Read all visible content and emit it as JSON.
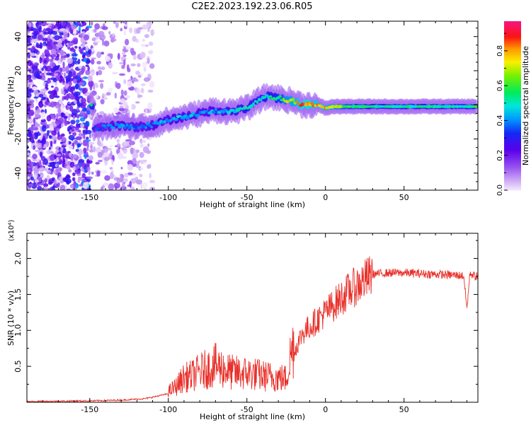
{
  "figure_title": "C2E2.2023.192.23.06.R05",
  "chart_data": [
    {
      "type": "heatmap",
      "xlabel": "Height of straight line (km)",
      "ylabel": "Frequency (Hz)",
      "xlim": [
        -190,
        97
      ],
      "ylim": [
        -50,
        49
      ],
      "x_ticks": [
        -150,
        -100,
        -50,
        0,
        50
      ],
      "x_tick_labels": [
        "-150",
        "-100",
        "-50",
        "0",
        "50"
      ],
      "y_ticks": [
        -40,
        -20,
        0,
        20,
        40
      ],
      "y_tick_labels": [
        "-40",
        "-20",
        "0",
        "20",
        "40"
      ],
      "colorbar": {
        "label": "Normalized spectral amplitude",
        "range": [
          0,
          0.97
        ],
        "ticks": [
          0.0,
          0.2,
          0.4,
          0.6,
          0.8
        ],
        "tick_labels": [
          "0.0",
          "0.2",
          "0.4",
          "0.6",
          "0.8"
        ],
        "colormap": "rainbow (white–purple–blue–cyan–green–yellow–red–pink)"
      },
      "ridge_frequency": {
        "x": [
          -148,
          -140,
          -130,
          -120,
          -110,
          -100,
          -90,
          -80,
          -70,
          -60,
          -50,
          -45,
          -40,
          -35,
          -30,
          -25,
          -20,
          -15,
          -10,
          -5,
          0,
          5,
          10,
          20,
          30,
          50,
          70,
          90,
          95
        ],
        "y": [
          -14,
          -13,
          -12,
          -13,
          -12,
          -9,
          -7,
          -5,
          -3,
          -4,
          -2,
          1,
          4,
          5,
          4,
          3,
          2,
          0,
          0,
          0,
          -2,
          -1,
          -1,
          -1,
          -1,
          -1,
          -1,
          -1,
          -1
        ],
        "amplitude": [
          0.35,
          0.4,
          0.45,
          0.4,
          0.45,
          0.45,
          0.5,
          0.45,
          0.45,
          0.5,
          0.55,
          0.5,
          0.55,
          0.55,
          0.6,
          0.75,
          0.8,
          0.9,
          0.9,
          0.85,
          0.85,
          0.75,
          0.7,
          0.6,
          0.55,
          0.55,
          0.55,
          0.55,
          0.6
        ]
      },
      "noise_region": "scattered low-amplitude speckle for x < -110 km"
    },
    {
      "type": "line",
      "xlabel": "Height of straight line (km)",
      "ylabel": "SNR (10 * v/v)",
      "y_multiplier": "(x10⁴)",
      "xlim": [
        -190,
        97
      ],
      "ylim": [
        0,
        2.35
      ],
      "x_ticks": [
        -150,
        -100,
        -50,
        0,
        50
      ],
      "x_tick_labels": [
        "-150",
        "-100",
        "-50",
        "0",
        "50"
      ],
      "y_ticks": [
        0.5,
        1.0,
        1.5,
        2.0
      ],
      "y_tick_labels": [
        "0.5",
        "1.0",
        "1.5",
        "2.0"
      ],
      "line_color": "#e8302a",
      "series": [
        {
          "x": [
            -190,
            -170,
            -150,
            -130,
            -115,
            -108,
            -100,
            -95,
            -90,
            -85,
            -80,
            -75,
            -70,
            -65,
            -60,
            -55,
            -50,
            -45,
            -40,
            -35,
            -30,
            -25,
            -22,
            -18,
            -15,
            -10,
            -5,
            0,
            5,
            10,
            15,
            20,
            25,
            30,
            40,
            50,
            60,
            70,
            80,
            88,
            90,
            92,
            95
          ],
          "y": [
            0.01,
            0.015,
            0.02,
            0.03,
            0.05,
            0.08,
            0.12,
            0.18,
            0.28,
            0.3,
            0.35,
            0.38,
            0.42,
            0.38,
            0.34,
            0.33,
            0.33,
            0.32,
            0.3,
            0.29,
            0.28,
            0.27,
            0.55,
            0.8,
            0.95,
            1.05,
            1.15,
            1.25,
            1.35,
            1.45,
            1.55,
            1.62,
            1.7,
            1.78,
            1.8,
            1.8,
            1.79,
            1.78,
            1.77,
            1.76,
            1.3,
            1.8,
            1.75
          ]
        }
      ]
    }
  ]
}
